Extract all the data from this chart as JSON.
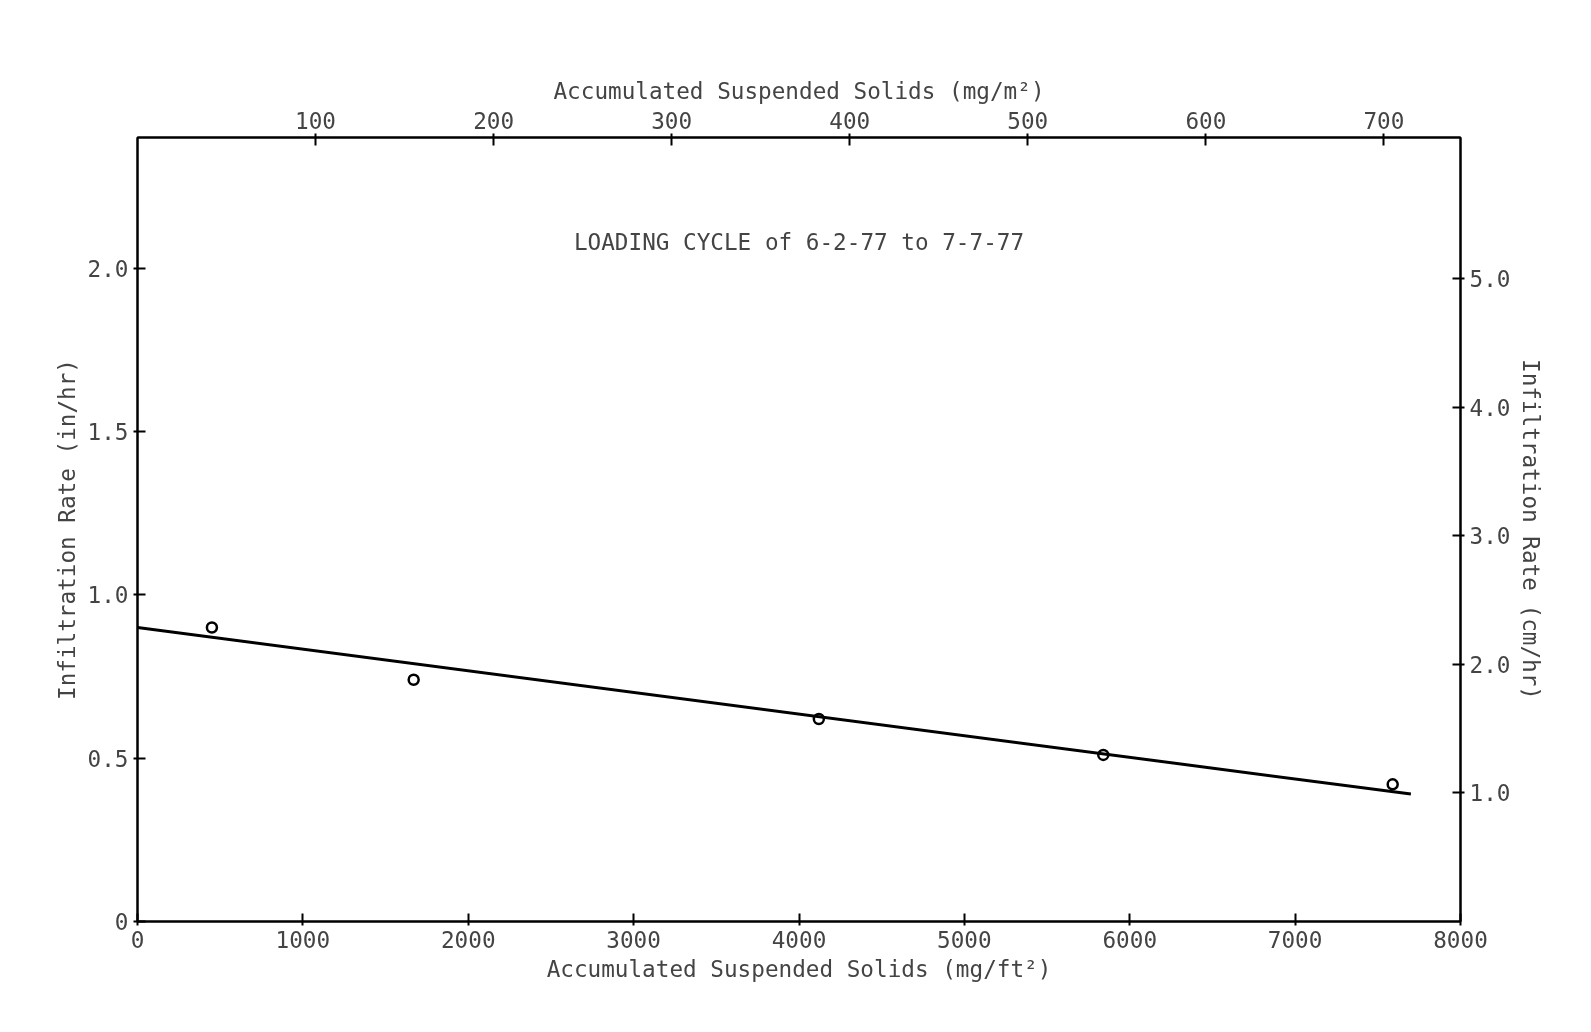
{
  "chart_data": {
    "type": "scatter",
    "xlabel": "Accumulated Suspended Solids (mg/ft²)",
    "x2label": "Accumulated Suspended Solids (mg/m²)",
    "ylabel": "Infiltration Rate (in/hr)",
    "y2label": "Infiltration Rate (cm/hr)",
    "annotations": [
      "LOADING CYCLE of 6-2-77 to 7-7-77"
    ],
    "xlim": [
      0,
      8000
    ],
    "xticks": [
      0,
      1000,
      2000,
      3000,
      4000,
      5000,
      6000,
      7000,
      8000
    ],
    "x2lim": [
      0,
      743
    ],
    "x2ticks": [
      100,
      200,
      300,
      400,
      500,
      600,
      700
    ],
    "ylim": [
      0,
      2.4
    ],
    "yticks": [
      0,
      {
        "value": 0.5,
        "label": "0.5"
      },
      {
        "value": 1,
        "label": "1.0"
      },
      {
        "value": 1.5,
        "label": "1.5"
      },
      {
        "value": 2,
        "label": "2.0"
      }
    ],
    "y2lim": [
      0,
      6.096
    ],
    "y2ticks": [
      {
        "value": 1,
        "label": "1.0"
      },
      {
        "value": 2,
        "label": "2.0"
      },
      {
        "value": 3,
        "label": "3.0"
      },
      {
        "value": 4,
        "label": "4.0"
      },
      {
        "value": 5,
        "label": "5.0"
      }
    ],
    "grid": false,
    "series": [
      {
        "marker": "circle",
        "color": "#000000",
        "x": [
          450,
          1670,
          4120,
          5840,
          7590
        ],
        "values": [
          0.9,
          0.74,
          0.62,
          0.51,
          0.42
        ]
      },
      {
        "type": "line",
        "color": "#000000",
        "x": [
          0,
          7700
        ],
        "values": [
          0.9,
          0.39
        ]
      }
    ]
  }
}
